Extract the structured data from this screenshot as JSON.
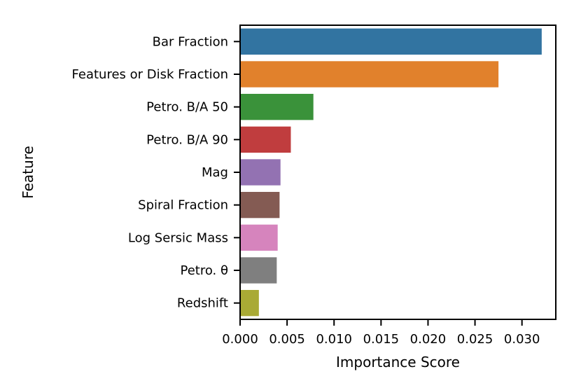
{
  "chart_data": {
    "type": "bar",
    "orientation": "horizontal",
    "xlabel": "Importance Score",
    "ylabel": "Feature",
    "xlim": [
      0,
      0.0336
    ],
    "xticks": [
      0.0,
      0.005,
      0.01,
      0.015,
      0.02,
      0.025,
      0.03
    ],
    "xtick_labels": [
      "0.000",
      "0.005",
      "0.010",
      "0.015",
      "0.020",
      "0.025",
      "0.030"
    ],
    "categories": [
      "Bar Fraction",
      "Features or Disk Fraction",
      "Petro. B/A 50",
      "Petro. B/A 90",
      "Mag",
      "Spiral Fraction",
      "Log Sersic Mass",
      "Petro. θ",
      "Redshift"
    ],
    "values": [
      0.0321,
      0.0275,
      0.0078,
      0.0054,
      0.0043,
      0.0042,
      0.004,
      0.0039,
      0.002
    ],
    "colors": [
      "#3274a1",
      "#e1812c",
      "#3a923a",
      "#c03d3e",
      "#9372b2",
      "#845b53",
      "#d684bd",
      "#7f7f7f",
      "#a9aa35"
    ],
    "grid": false
  }
}
